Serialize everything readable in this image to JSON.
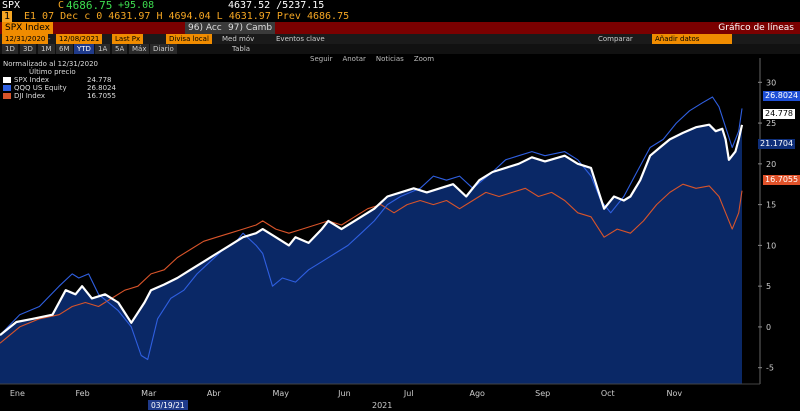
{
  "header": {
    "ticker": "SPX",
    "price_prefix": "C",
    "price": "4686.75",
    "change": "+95.08",
    "range": "4637.52 /5237.15",
    "line2_tag": "1",
    "line2": "E1 07 Dec c 0 4631.97 H 4694.04 L 4631.97 Prev 4686.75"
  },
  "toolbar": {
    "security": "SPX Index",
    "acc": "96) Acc",
    "camb": "97) Camb",
    "chart_type": "Gráfico de líneas"
  },
  "controls": {
    "date_start": "12/31/2020",
    "date_end": "12/08/2021",
    "field": "Last Px",
    "currency": "Divisa local",
    "med_mov": "Med móv",
    "eventos": "Eventos clave",
    "ranges": [
      "1D",
      "3D",
      "1M",
      "6M",
      "YTD",
      "1A",
      "5A",
      "Máx"
    ],
    "selected_range": "YTD",
    "period": "Diario",
    "tabla": "Tabla",
    "comparar": "Comparar",
    "notas": "Añadir datos"
  },
  "chart_tools": [
    "Seguir",
    "Anotar",
    "Noticias",
    "Zoom"
  ],
  "chart_data": {
    "type": "line",
    "title": "",
    "subtitle": "Normalizado al 12/31/2020",
    "legend_header": "Último precio",
    "x_labels": [
      "Ene",
      "Feb",
      "Mar",
      "Abr",
      "May",
      "Jun",
      "Jul",
      "Ago",
      "Sep",
      "Oct",
      "Nov"
    ],
    "year_label": "2021",
    "cursor_date": "03/19/21",
    "ylim": [
      -7,
      32
    ],
    "y_ticks": [
      -5,
      0,
      5,
      10,
      15,
      20,
      25,
      30
    ],
    "grid": false,
    "x_domain": [
      0,
      11.3
    ],
    "series": [
      {
        "name": "SPX Index",
        "last": "24.778",
        "color": "#ffffff",
        "points": [
          [
            0,
            -1
          ],
          [
            0.25,
            0.6
          ],
          [
            0.5,
            1
          ],
          [
            0.8,
            1.5
          ],
          [
            1.0,
            4.5
          ],
          [
            1.15,
            4
          ],
          [
            1.25,
            5
          ],
          [
            1.4,
            3.5
          ],
          [
            1.6,
            4
          ],
          [
            1.8,
            3
          ],
          [
            2.0,
            0.5
          ],
          [
            2.2,
            3
          ],
          [
            2.3,
            4.5
          ],
          [
            2.5,
            5.2
          ],
          [
            2.7,
            6
          ],
          [
            2.9,
            7
          ],
          [
            3.1,
            8
          ],
          [
            3.3,
            9
          ],
          [
            3.5,
            10
          ],
          [
            3.7,
            11
          ],
          [
            3.9,
            11.5
          ],
          [
            4.0,
            12
          ],
          [
            4.2,
            11
          ],
          [
            4.4,
            10
          ],
          [
            4.5,
            11
          ],
          [
            4.7,
            10.3
          ],
          [
            4.9,
            12
          ],
          [
            5.0,
            13
          ],
          [
            5.2,
            12
          ],
          [
            5.5,
            13.5
          ],
          [
            5.7,
            14.5
          ],
          [
            5.9,
            16
          ],
          [
            6.1,
            16.5
          ],
          [
            6.3,
            17
          ],
          [
            6.5,
            16.5
          ],
          [
            6.7,
            17
          ],
          [
            6.9,
            17.5
          ],
          [
            7.1,
            16
          ],
          [
            7.3,
            18
          ],
          [
            7.5,
            19
          ],
          [
            7.7,
            19.5
          ],
          [
            7.9,
            20
          ],
          [
            8.1,
            20.8
          ],
          [
            8.3,
            20.3
          ],
          [
            8.6,
            21
          ],
          [
            8.8,
            20
          ],
          [
            9.0,
            19.5
          ],
          [
            9.1,
            17
          ],
          [
            9.2,
            14.5
          ],
          [
            9.35,
            16
          ],
          [
            9.5,
            15.5
          ],
          [
            9.6,
            16
          ],
          [
            9.75,
            18
          ],
          [
            9.9,
            21
          ],
          [
            10.05,
            22
          ],
          [
            10.2,
            23
          ],
          [
            10.4,
            23.8
          ],
          [
            10.6,
            24.5
          ],
          [
            10.8,
            24.8
          ],
          [
            10.9,
            24
          ],
          [
            11.0,
            24.3
          ],
          [
            11.05,
            23
          ],
          [
            11.1,
            20.5
          ],
          [
            11.2,
            21.5
          ],
          [
            11.25,
            23
          ],
          [
            11.3,
            24.778
          ]
        ]
      },
      {
        "name": "QQQ US Equity",
        "last": "26.8024",
        "color": "#2f5fe0",
        "points": [
          [
            0,
            -1
          ],
          [
            0.3,
            1.5
          ],
          [
            0.6,
            2.5
          ],
          [
            0.9,
            5
          ],
          [
            1.1,
            6.5
          ],
          [
            1.2,
            6
          ],
          [
            1.35,
            6.5
          ],
          [
            1.5,
            4
          ],
          [
            1.8,
            2
          ],
          [
            2.0,
            0
          ],
          [
            2.15,
            -3.5
          ],
          [
            2.25,
            -4
          ],
          [
            2.4,
            1
          ],
          [
            2.6,
            3.5
          ],
          [
            2.8,
            4.5
          ],
          [
            3.0,
            6.5
          ],
          [
            3.2,
            8
          ],
          [
            3.4,
            9.5
          ],
          [
            3.6,
            10.5
          ],
          [
            3.7,
            11.5
          ],
          [
            3.9,
            10
          ],
          [
            4.0,
            9
          ],
          [
            4.15,
            5
          ],
          [
            4.3,
            6
          ],
          [
            4.5,
            5.5
          ],
          [
            4.7,
            7
          ],
          [
            4.9,
            8
          ],
          [
            5.1,
            9
          ],
          [
            5.3,
            10
          ],
          [
            5.5,
            11.5
          ],
          [
            5.7,
            13
          ],
          [
            5.9,
            15
          ],
          [
            6.1,
            16
          ],
          [
            6.4,
            17
          ],
          [
            6.6,
            18.5
          ],
          [
            6.8,
            18
          ],
          [
            7.0,
            18.5
          ],
          [
            7.2,
            17
          ],
          [
            7.5,
            19
          ],
          [
            7.7,
            20.5
          ],
          [
            7.9,
            21
          ],
          [
            8.1,
            21.5
          ],
          [
            8.3,
            21
          ],
          [
            8.6,
            21.5
          ],
          [
            8.8,
            20.5
          ],
          [
            9.0,
            18.5
          ],
          [
            9.15,
            15.5
          ],
          [
            9.3,
            14
          ],
          [
            9.5,
            16
          ],
          [
            9.7,
            19
          ],
          [
            9.9,
            22
          ],
          [
            10.1,
            23
          ],
          [
            10.3,
            25
          ],
          [
            10.5,
            26.5
          ],
          [
            10.7,
            27.5
          ],
          [
            10.85,
            28.2
          ],
          [
            10.95,
            27
          ],
          [
            11.05,
            24.5
          ],
          [
            11.15,
            22
          ],
          [
            11.25,
            24
          ],
          [
            11.3,
            26.8024
          ]
        ]
      },
      {
        "name": "DJI Index",
        "last": "16.7055",
        "color": "#d8542a",
        "points": [
          [
            0,
            -2
          ],
          [
            0.3,
            0
          ],
          [
            0.6,
            1
          ],
          [
            0.9,
            1.5
          ],
          [
            1.1,
            2.5
          ],
          [
            1.3,
            3
          ],
          [
            1.5,
            2.5
          ],
          [
            1.7,
            3.5
          ],
          [
            1.9,
            4.5
          ],
          [
            2.1,
            5
          ],
          [
            2.3,
            6.5
          ],
          [
            2.5,
            7
          ],
          [
            2.7,
            8.5
          ],
          [
            2.9,
            9.5
          ],
          [
            3.1,
            10.5
          ],
          [
            3.3,
            11
          ],
          [
            3.5,
            11.5
          ],
          [
            3.7,
            12
          ],
          [
            3.9,
            12.5
          ],
          [
            4.0,
            13
          ],
          [
            4.2,
            12
          ],
          [
            4.4,
            11.5
          ],
          [
            4.6,
            12
          ],
          [
            4.8,
            12.5
          ],
          [
            5.0,
            13
          ],
          [
            5.2,
            12.5
          ],
          [
            5.4,
            13.5
          ],
          [
            5.6,
            14.5
          ],
          [
            5.8,
            15
          ],
          [
            6.0,
            14
          ],
          [
            6.2,
            15
          ],
          [
            6.4,
            15.5
          ],
          [
            6.6,
            15
          ],
          [
            6.8,
            15.5
          ],
          [
            7.0,
            14.5
          ],
          [
            7.2,
            15.5
          ],
          [
            7.4,
            16.5
          ],
          [
            7.6,
            16
          ],
          [
            7.8,
            16.5
          ],
          [
            8.0,
            17
          ],
          [
            8.2,
            16
          ],
          [
            8.4,
            16.5
          ],
          [
            8.6,
            15.5
          ],
          [
            8.8,
            14
          ],
          [
            9.0,
            13.5
          ],
          [
            9.2,
            11
          ],
          [
            9.4,
            12
          ],
          [
            9.6,
            11.5
          ],
          [
            9.8,
            13
          ],
          [
            10.0,
            15
          ],
          [
            10.2,
            16.5
          ],
          [
            10.4,
            17.5
          ],
          [
            10.6,
            17
          ],
          [
            10.8,
            17.3
          ],
          [
            10.95,
            16
          ],
          [
            11.05,
            14
          ],
          [
            11.15,
            12
          ],
          [
            11.25,
            14
          ],
          [
            11.3,
            16.7055
          ]
        ]
      }
    ],
    "tags": [
      "26.8024",
      "24.778",
      "21.1704",
      "16.7055"
    ]
  },
  "colors": {
    "area_fill": "#0b2a6b",
    "spx_tag": "#ffffff",
    "qqq_tag": "#1e4fd6",
    "dji_tag": "#e0522a",
    "mid_tag": "#0f2f7a"
  }
}
